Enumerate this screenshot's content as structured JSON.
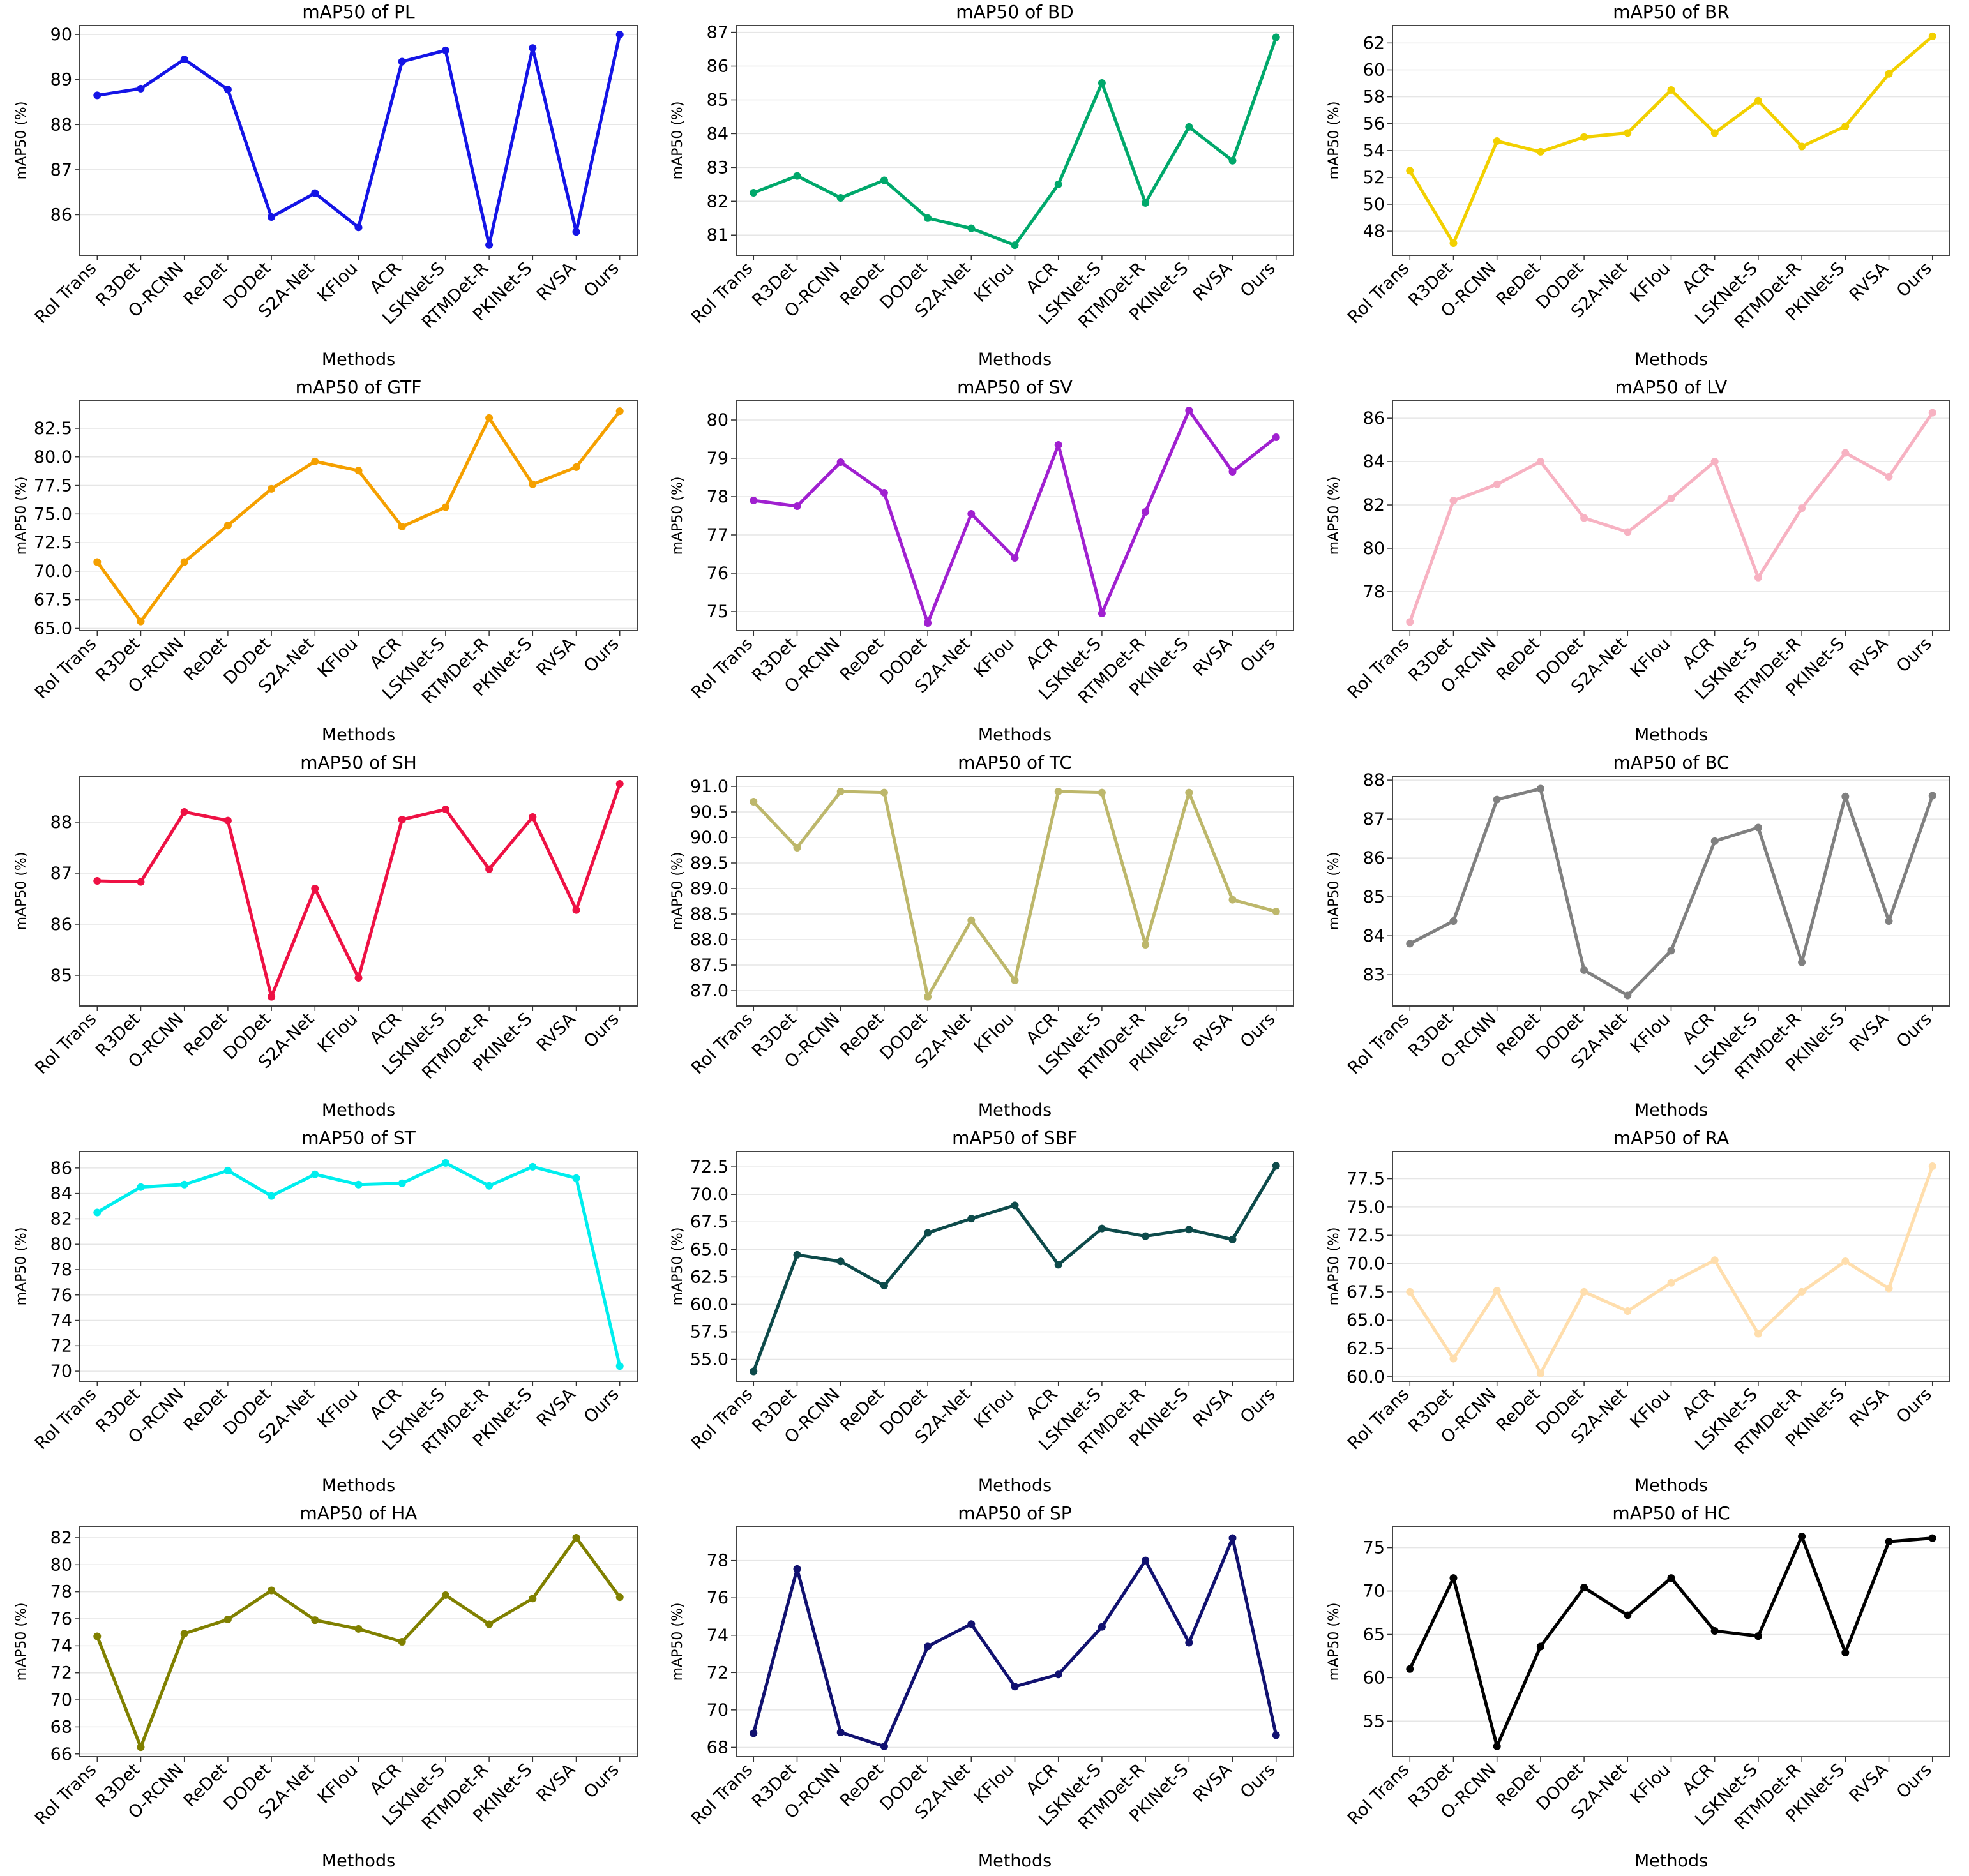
{
  "chart_data": [
    {
      "type": "line",
      "title": "mAP50 of PL",
      "xlabel": "Methods",
      "ylabel": "mAP50 (%)",
      "categories": [
        "RoI Trans",
        "R3Det",
        "O-RCNN",
        "ReDet",
        "DODet",
        "S2A-Net",
        "KFIou",
        "ACR",
        "LSKNet-S",
        "RTMDet-R",
        "PKINet-S",
        "RVSA",
        "Ours"
      ],
      "values": [
        88.65,
        88.8,
        89.45,
        88.78,
        85.95,
        86.48,
        85.72,
        89.4,
        89.65,
        85.33,
        89.7,
        85.62,
        90.0
      ],
      "color": "#1414e6",
      "ylim": [
        85.1,
        90.2
      ],
      "yticks": [
        86,
        87,
        88,
        89,
        90
      ],
      "grid": true
    },
    {
      "type": "line",
      "title": "mAP50 of BD",
      "xlabel": "Methods",
      "ylabel": "mAP50 (%)",
      "categories": [
        "RoI Trans",
        "R3Det",
        "O-RCNN",
        "ReDet",
        "DODet",
        "S2A-Net",
        "KFIou",
        "ACR",
        "LSKNet-S",
        "RTMDet-R",
        "PKINet-S",
        "RVSA",
        "Ours"
      ],
      "values": [
        82.25,
        82.75,
        82.1,
        82.62,
        81.5,
        81.2,
        80.7,
        82.5,
        85.5,
        81.95,
        84.2,
        83.2,
        86.85
      ],
      "color": "#00a86b",
      "ylim": [
        80.4,
        87.2
      ],
      "yticks": [
        81,
        82,
        83,
        84,
        85,
        86,
        87
      ],
      "grid": true
    },
    {
      "type": "line",
      "title": "mAP50 of BR",
      "xlabel": "Methods",
      "ylabel": "mAP50 (%)",
      "categories": [
        "RoI Trans",
        "R3Det",
        "O-RCNN",
        "ReDet",
        "DODet",
        "S2A-Net",
        "KFIou",
        "ACR",
        "LSKNet-S",
        "RTMDet-R",
        "PKINet-S",
        "RVSA",
        "Ours"
      ],
      "values": [
        52.5,
        47.1,
        54.7,
        53.9,
        55.0,
        55.3,
        58.5,
        55.3,
        57.7,
        54.3,
        55.8,
        59.7,
        62.5
      ],
      "color": "#f2d000",
      "ylim": [
        46.2,
        63.3
      ],
      "yticks": [
        48,
        50,
        52,
        54,
        56,
        58,
        60,
        62
      ],
      "grid": true
    },
    {
      "type": "line",
      "title": "mAP50 of GTF",
      "xlabel": "Methods",
      "ylabel": "mAP50 (%)",
      "categories": [
        "RoI Trans",
        "R3Det",
        "O-RCNN",
        "ReDet",
        "DODet",
        "S2A-Net",
        "KFIou",
        "ACR",
        "LSKNet-S",
        "RTMDet-R",
        "PKINet-S",
        "RVSA",
        "Ours"
      ],
      "values": [
        70.8,
        65.6,
        70.8,
        74.0,
        77.2,
        79.6,
        78.8,
        73.9,
        75.6,
        83.4,
        77.6,
        79.1,
        84.0
      ],
      "color": "#f5a000",
      "ylim": [
        64.8,
        84.9
      ],
      "yticks": [
        {
          "value": 65,
          "label": "65.0"
        },
        67.5,
        {
          "value": 70,
          "label": "70.0"
        },
        72.5,
        {
          "value": 75,
          "label": "75.0"
        },
        77.5,
        {
          "value": 80,
          "label": "80.0"
        },
        82.5
      ],
      "grid": true
    },
    {
      "type": "line",
      "title": "mAP50 of SV",
      "xlabel": "Methods",
      "ylabel": "mAP50 (%)",
      "categories": [
        "RoI Trans",
        "R3Det",
        "O-RCNN",
        "ReDet",
        "DODet",
        "S2A-Net",
        "KFIou",
        "ACR",
        "LSKNet-S",
        "RTMDet-R",
        "PKINet-S",
        "RVSA",
        "Ours"
      ],
      "values": [
        77.9,
        77.75,
        78.9,
        78.1,
        74.7,
        77.55,
        76.4,
        79.35,
        74.95,
        77.6,
        80.25,
        78.65,
        79.55
      ],
      "color": "#a020d0",
      "ylim": [
        74.5,
        80.5
      ],
      "yticks": [
        75,
        76,
        77,
        78,
        79,
        80
      ],
      "grid": true
    },
    {
      "type": "line",
      "title": "mAP50 of LV",
      "xlabel": "Methods",
      "ylabel": "mAP50 (%)",
      "categories": [
        "RoI Trans",
        "R3Det",
        "O-RCNN",
        "ReDet",
        "DODet",
        "S2A-Net",
        "KFIou",
        "ACR",
        "LSKNet-S",
        "RTMDet-R",
        "PKINet-S",
        "RVSA",
        "Ours"
      ],
      "values": [
        76.6,
        82.2,
        82.95,
        84.0,
        81.4,
        80.75,
        82.3,
        84.0,
        78.65,
        81.85,
        84.4,
        83.3,
        86.25
      ],
      "color": "#f7b2c2",
      "ylim": [
        76.2,
        86.8
      ],
      "yticks": [
        78,
        80,
        82,
        84,
        86
      ],
      "grid": true
    },
    {
      "type": "line",
      "title": "mAP50 of SH",
      "xlabel": "Methods",
      "ylabel": "mAP50 (%)",
      "categories": [
        "RoI Trans",
        "R3Det",
        "O-RCNN",
        "ReDet",
        "DODet",
        "S2A-Net",
        "KFIou",
        "ACR",
        "LSKNet-S",
        "RTMDet-R",
        "PKINet-S",
        "RVSA",
        "Ours"
      ],
      "values": [
        86.85,
        86.83,
        88.2,
        88.03,
        84.58,
        86.7,
        84.95,
        88.05,
        88.25,
        87.08,
        88.1,
        86.28,
        88.75
      ],
      "color": "#ee1144",
      "ylim": [
        84.4,
        88.9
      ],
      "yticks": [
        85,
        86,
        87,
        88
      ],
      "grid": true
    },
    {
      "type": "line",
      "title": "mAP50 of TC",
      "xlabel": "Methods",
      "ylabel": "mAP50 (%)",
      "categories": [
        "RoI Trans",
        "R3Det",
        "O-RCNN",
        "ReDet",
        "DODet",
        "S2A-Net",
        "KFIou",
        "ACR",
        "LSKNet-S",
        "RTMDet-R",
        "PKINet-S",
        "RVSA",
        "Ours"
      ],
      "values": [
        90.7,
        89.8,
        90.9,
        90.88,
        86.88,
        88.38,
        87.2,
        90.9,
        90.88,
        87.9,
        90.88,
        88.78,
        88.55
      ],
      "color": "#bdb76b",
      "ylim": [
        86.7,
        91.2
      ],
      "yticks": [
        {
          "value": 87,
          "label": "87.0"
        },
        87.5,
        {
          "value": 88,
          "label": "88.0"
        },
        88.5,
        {
          "value": 89,
          "label": "89.0"
        },
        89.5,
        {
          "value": 90,
          "label": "90.0"
        },
        90.5,
        {
          "value": 91,
          "label": "91.0"
        }
      ],
      "grid": true
    },
    {
      "type": "line",
      "title": "mAP50 of BC",
      "xlabel": "Methods",
      "ylabel": "mAP50 (%)",
      "categories": [
        "RoI Trans",
        "R3Det",
        "O-RCNN",
        "ReDet",
        "DODet",
        "S2A-Net",
        "KFIou",
        "ACR",
        "LSKNet-S",
        "RTMDet-R",
        "PKINet-S",
        "RVSA",
        "Ours"
      ],
      "values": [
        83.8,
        84.38,
        87.5,
        87.78,
        83.12,
        82.47,
        83.62,
        86.43,
        86.78,
        83.32,
        87.58,
        84.38,
        87.6
      ],
      "color": "#808080",
      "ylim": [
        82.2,
        88.1
      ],
      "yticks": [
        83,
        84,
        85,
        86,
        87,
        88
      ],
      "grid": true
    },
    {
      "type": "line",
      "title": "mAP50 of ST",
      "xlabel": "Methods",
      "ylabel": "mAP50 (%)",
      "categories": [
        "RoI Trans",
        "R3Det",
        "O-RCNN",
        "ReDet",
        "DODet",
        "S2A-Net",
        "KFIou",
        "ACR",
        "LSKNet-S",
        "RTMDet-R",
        "PKINet-S",
        "RVSA",
        "Ours"
      ],
      "values": [
        82.5,
        84.5,
        84.7,
        85.8,
        83.8,
        85.5,
        84.7,
        84.8,
        86.4,
        84.6,
        86.1,
        85.2,
        70.4
      ],
      "color": "#00eeee",
      "ylim": [
        69.2,
        87.3
      ],
      "yticks": [
        70,
        72,
        74,
        76,
        78,
        80,
        82,
        84,
        86
      ],
      "grid": true
    },
    {
      "type": "line",
      "title": "mAP50 of SBF",
      "xlabel": "Methods",
      "ylabel": "mAP50 (%)",
      "categories": [
        "RoI Trans",
        "R3Det",
        "O-RCNN",
        "ReDet",
        "DODet",
        "S2A-Net",
        "KFIou",
        "ACR",
        "LSKNet-S",
        "RTMDet-R",
        "PKINet-S",
        "RVSA",
        "Ours"
      ],
      "values": [
        53.9,
        64.5,
        63.9,
        61.7,
        66.5,
        67.8,
        69.0,
        63.6,
        66.9,
        66.2,
        66.8,
        65.9,
        72.6
      ],
      "color": "#0d4a4a",
      "ylim": [
        53.0,
        73.9
      ],
      "yticks": [
        {
          "value": 55,
          "label": "55.0"
        },
        57.5,
        {
          "value": 60,
          "label": "60.0"
        },
        62.5,
        {
          "value": 65,
          "label": "65.0"
        },
        67.5,
        {
          "value": 70,
          "label": "70.0"
        },
        72.5
      ],
      "grid": true
    },
    {
      "type": "line",
      "title": "mAP50 of RA",
      "xlabel": "Methods",
      "ylabel": "mAP50 (%)",
      "categories": [
        "RoI Trans",
        "R3Det",
        "O-RCNN",
        "ReDet",
        "DODet",
        "S2A-Net",
        "KFIou",
        "ACR",
        "LSKNet-S",
        "RTMDet-R",
        "PKINet-S",
        "RVSA",
        "Ours"
      ],
      "values": [
        67.5,
        61.6,
        67.6,
        60.3,
        67.5,
        65.8,
        68.3,
        70.3,
        63.8,
        67.5,
        70.2,
        67.8,
        78.6
      ],
      "color": "#ffdead",
      "ylim": [
        59.6,
        79.9
      ],
      "yticks": [
        {
          "value": 60,
          "label": "60.0"
        },
        62.5,
        {
          "value": 65,
          "label": "65.0"
        },
        67.5,
        {
          "value": 70,
          "label": "70.0"
        },
        72.5,
        {
          "value": 75,
          "label": "75.0"
        },
        77.5
      ],
      "grid": true
    },
    {
      "type": "line",
      "title": "mAP50 of HA",
      "xlabel": "Methods",
      "ylabel": "mAP50 (%)",
      "categories": [
        "RoI Trans",
        "R3Det",
        "O-RCNN",
        "ReDet",
        "DODet",
        "S2A-Net",
        "KFIou",
        "ACR",
        "LSKNet-S",
        "RTMDet-R",
        "PKINet-S",
        "RVSA",
        "Ours"
      ],
      "values": [
        74.7,
        66.5,
        74.9,
        75.95,
        78.1,
        75.9,
        75.25,
        74.3,
        77.75,
        75.6,
        77.5,
        82.0,
        77.6
      ],
      "color": "#808000",
      "ylim": [
        65.8,
        82.8
      ],
      "yticks": [
        66,
        68,
        70,
        72,
        74,
        76,
        78,
        80,
        82
      ],
      "grid": true
    },
    {
      "type": "line",
      "title": "mAP50 of SP",
      "xlabel": "Methods",
      "ylabel": "mAP50 (%)",
      "categories": [
        "RoI Trans",
        "R3Det",
        "O-RCNN",
        "ReDet",
        "DODet",
        "S2A-Net",
        "KFIou",
        "ACR",
        "LSKNet-S",
        "RTMDet-R",
        "PKINet-S",
        "RVSA",
        "Ours"
      ],
      "values": [
        68.75,
        77.55,
        68.8,
        68.05,
        73.4,
        74.6,
        71.25,
        71.9,
        74.45,
        78.0,
        73.6,
        79.2,
        68.65
      ],
      "color": "#111170",
      "ylim": [
        67.5,
        79.8
      ],
      "yticks": [
        68,
        70,
        72,
        74,
        76,
        78
      ],
      "grid": true
    },
    {
      "type": "line",
      "title": "mAP50 of HC",
      "xlabel": "Methods",
      "ylabel": "mAP50 (%)",
      "categories": [
        "RoI Trans",
        "R3Det",
        "O-RCNN",
        "ReDet",
        "DODet",
        "S2A-Net",
        "KFIou",
        "ACR",
        "LSKNet-S",
        "RTMDet-R",
        "PKINet-S",
        "RVSA",
        "Ours"
      ],
      "values": [
        61.0,
        71.5,
        52.1,
        63.6,
        70.4,
        67.2,
        71.5,
        65.4,
        64.8,
        76.3,
        62.9,
        75.7,
        76.1
      ],
      "color": "#000000",
      "ylim": [
        50.9,
        77.4
      ],
      "yticks": [
        55,
        60,
        65,
        70,
        75
      ],
      "grid": true
    }
  ]
}
